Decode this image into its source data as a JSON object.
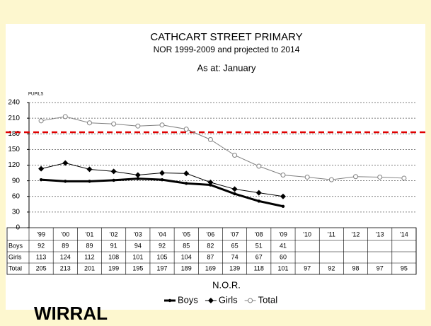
{
  "chart_data": {
    "type": "line",
    "title": "CATHCART STREET PRIMARY",
    "subtitle": "NOR 1999-2009 and projected to 2014",
    "note": "As at: January",
    "y_label": "PUPILS",
    "x_label": "N.O.R.",
    "logo": "WIRRAL",
    "categories": [
      "'99",
      "'00",
      "'01",
      "'02",
      "'03",
      "'04",
      "'05",
      "'06",
      "'07",
      "'08",
      "'09",
      "'10",
      "'11",
      "'12",
      "'13",
      "'14"
    ],
    "series": [
      {
        "name": "Boys",
        "color": "#000000",
        "line_width": 3,
        "marker": "dot",
        "values": [
          92,
          89,
          89,
          91,
          94,
          92,
          85,
          82,
          65,
          51,
          41,
          null,
          null,
          null,
          null,
          null
        ]
      },
      {
        "name": "Girls",
        "color": "#000000",
        "line_width": 1,
        "marker": "diamond",
        "values": [
          113,
          124,
          112,
          108,
          101,
          105,
          104,
          87,
          74,
          67,
          60,
          null,
          null,
          null,
          null,
          null
        ]
      },
      {
        "name": "Total",
        "color": "#808080",
        "line_width": 1,
        "marker": "circle",
        "values": [
          205,
          213,
          201,
          199,
          195,
          197,
          189,
          169,
          139,
          118,
          101,
          97,
          92,
          98,
          97,
          95
        ]
      }
    ],
    "reference_line": {
      "value": 183,
      "color": "#e00000"
    },
    "ylim": [
      0,
      240
    ],
    "yticks": [
      0,
      30,
      60,
      90,
      120,
      150,
      180,
      210,
      240
    ],
    "grid": true,
    "legend": "bottom"
  }
}
